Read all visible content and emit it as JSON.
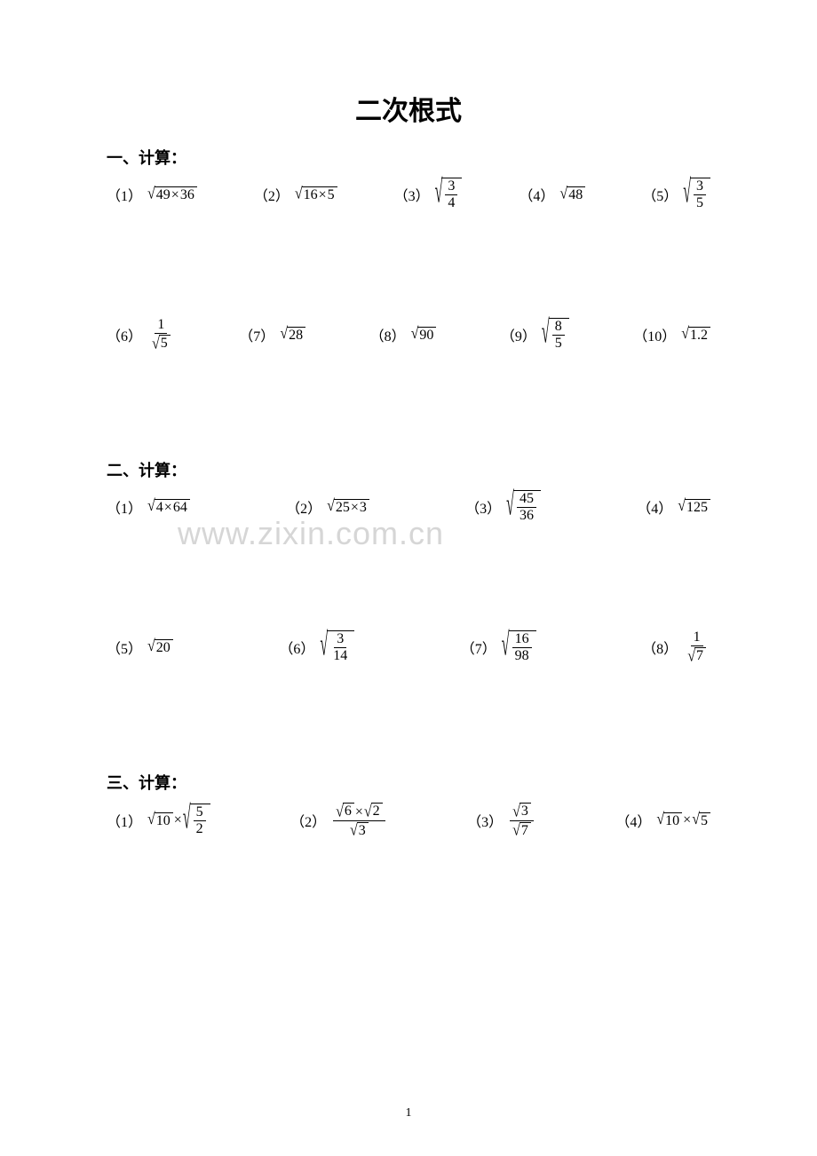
{
  "title": "二次根式",
  "watermark": "www.zixin.com.cn",
  "page_number": "1",
  "sections": [
    {
      "heading": "一、计算：",
      "rows": [
        [
          {
            "n": "（1）",
            "kind": "sqrt_prod",
            "a": "49",
            "b": "36"
          },
          {
            "n": "（2）",
            "kind": "sqrt_prod",
            "a": "16",
            "b": "5"
          },
          {
            "n": "（3）",
            "kind": "sqrt_frac",
            "top": "3",
            "bot": "4"
          },
          {
            "n": "（4）",
            "kind": "sqrt",
            "v": "48"
          },
          {
            "n": "（5）",
            "kind": "sqrt_frac",
            "top": "3",
            "bot": "5"
          }
        ],
        [
          {
            "n": "（6）",
            "kind": "frac_over_sqrt",
            "top": "1",
            "bot": "5"
          },
          {
            "n": "（7）",
            "kind": "sqrt",
            "v": "28"
          },
          {
            "n": "（8）",
            "kind": "sqrt",
            "v": "90"
          },
          {
            "n": "（9）",
            "kind": "sqrt_frac",
            "top": "8",
            "bot": "5"
          },
          {
            "n": "（10）",
            "kind": "sqrt",
            "v": "1.2"
          }
        ]
      ]
    },
    {
      "heading": "二、计算：",
      "rows": [
        [
          {
            "n": "（1）",
            "kind": "sqrt_prod",
            "a": "4",
            "b": "64"
          },
          {
            "n": "（2）",
            "kind": "sqrt_prod",
            "a": "25",
            "b": "3"
          },
          {
            "n": "（3）",
            "kind": "sqrt_frac",
            "top": "45",
            "bot": "36"
          },
          {
            "n": "（4）",
            "kind": "sqrt",
            "v": "125"
          }
        ],
        [
          {
            "n": "（5）",
            "kind": "sqrt",
            "v": "20"
          },
          {
            "n": "（6）",
            "kind": "sqrt_frac",
            "top": "3",
            "bot": "14"
          },
          {
            "n": "（7）",
            "kind": "sqrt_frac",
            "top": "16",
            "bot": "98"
          },
          {
            "n": "（8）",
            "kind": "frac_over_sqrt",
            "top": "1",
            "bot": "7"
          }
        ]
      ]
    },
    {
      "heading": "三、计算：",
      "rows": [
        [
          {
            "n": "（1）",
            "kind": "sqrt_times_sqrtfrac",
            "left": "10",
            "top": "5",
            "bot": "2"
          },
          {
            "n": "（2）",
            "kind": "s_s_over_s",
            "a": "6",
            "b": "2",
            "c": "3"
          },
          {
            "n": "（3）",
            "kind": "sqrt_over_sqrt",
            "top": "3",
            "bot": "7"
          },
          {
            "n": "（4）",
            "kind": "sqrt_times_sqrt",
            "a": "10",
            "b": "5"
          }
        ]
      ]
    }
  ]
}
